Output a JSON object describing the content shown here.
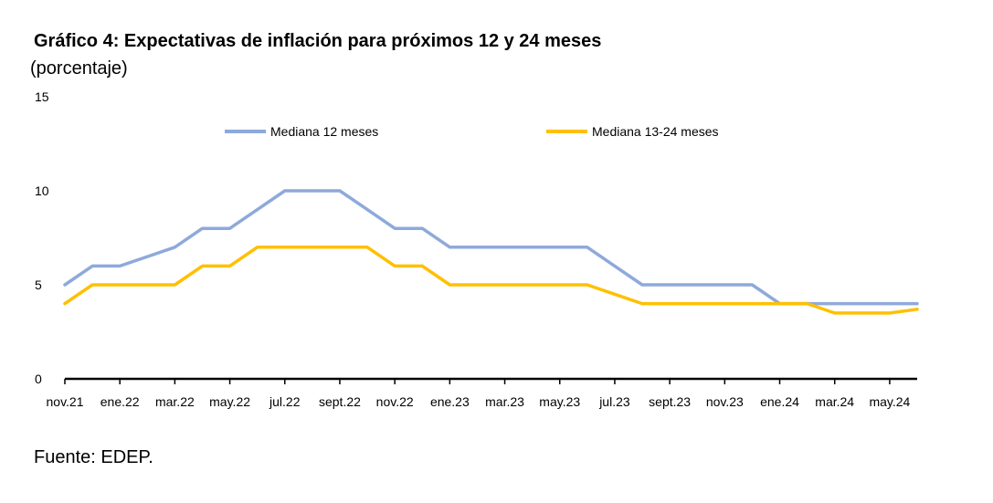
{
  "chart_data": {
    "type": "line",
    "title": "Gráfico 4: Expectativas de inflación para próximos 12 y 24 meses",
    "subtitle": "(porcentaje)",
    "source": "Fuente: EDEP.",
    "xlabel": "",
    "ylabel": "",
    "ylim": [
      0,
      15
    ],
    "yticks": [
      0,
      5,
      10,
      15
    ],
    "grid": false,
    "legend_position": "top",
    "x": [
      "nov.21",
      "dic.21",
      "ene.22",
      "feb.22",
      "mar.22",
      "abr.22",
      "may.22",
      "jun.22",
      "jul.22",
      "ago.22",
      "sept.22",
      "oct.22",
      "nov.22",
      "dic.22",
      "ene.23",
      "feb.23",
      "mar.23",
      "abr.23",
      "may.23",
      "jun.23",
      "jul.23",
      "ago.23",
      "sept.23",
      "oct.23",
      "nov.23",
      "dic.23",
      "ene.24",
      "feb.24",
      "mar.24",
      "abr.24",
      "may.24",
      "jun.24"
    ],
    "x_tick_labels": [
      "nov.21",
      "ene.22",
      "mar.22",
      "may.22",
      "jul.22",
      "sept.22",
      "nov.22",
      "ene.23",
      "mar.23",
      "may.23",
      "jul.23",
      "sept.23",
      "nov.23",
      "ene.24",
      "mar.24",
      "may.24"
    ],
    "series": [
      {
        "name": "Mediana 12 meses",
        "color": "#8EA9DB",
        "values": [
          5,
          6,
          6,
          6.5,
          7,
          8,
          8,
          9,
          10,
          10,
          10,
          9,
          8,
          8,
          7,
          7,
          7,
          7,
          7,
          7,
          6,
          5,
          5,
          5,
          5,
          5,
          4,
          4,
          4,
          4,
          4,
          4
        ]
      },
      {
        "name": "Mediana 13-24 meses",
        "color": "#FFC000",
        "values": [
          4,
          5,
          5,
          5,
          5,
          6,
          6,
          7,
          7,
          7,
          7,
          7,
          6,
          6,
          5,
          5,
          5,
          5,
          5,
          5,
          4.5,
          4,
          4,
          4,
          4,
          4,
          4,
          4,
          3.5,
          3.5,
          3.5,
          3.7
        ]
      }
    ]
  }
}
